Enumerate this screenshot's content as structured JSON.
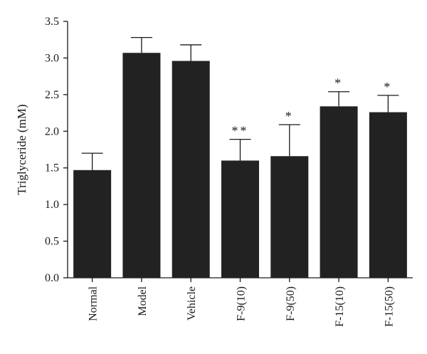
{
  "chart_data": {
    "type": "bar",
    "title": "",
    "xlabel": "",
    "ylabel": "Triglyceride (mM)",
    "ylim": [
      0,
      3.5
    ],
    "yticks": [
      "0.0",
      "0.5",
      "1.0",
      "1.5",
      "2.0",
      "2.5",
      "3.0",
      "3.5"
    ],
    "categories": [
      "Normal",
      "Model",
      "Vehicle",
      "F-9(10)",
      "F-9(50)",
      "F-15(10)",
      "F-15(50)"
    ],
    "values": [
      1.47,
      3.07,
      2.96,
      1.6,
      1.66,
      2.34,
      2.26
    ],
    "errors": [
      0.23,
      0.21,
      0.22,
      0.29,
      0.43,
      0.2,
      0.23
    ],
    "significance": [
      "",
      "",
      "",
      "**",
      "*",
      "*",
      "*"
    ],
    "bar_color": "#222222",
    "grid": false,
    "legend": "none"
  }
}
